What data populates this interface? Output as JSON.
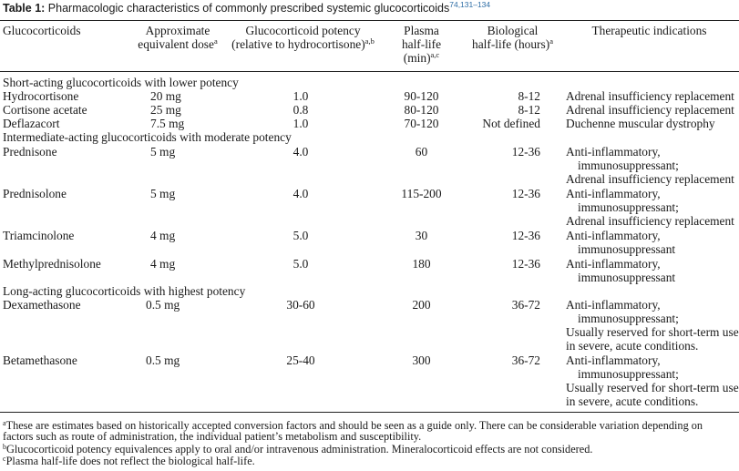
{
  "caption": {
    "label": "Table 1:",
    "text": "Pharmacologic characteristics of commonly prescribed systemic glucocorticoids",
    "refs": "74,131–134"
  },
  "headers": {
    "col1": "Glucocorticoids",
    "col2_line1": "Approximate",
    "col2_line2": "equivalent dose",
    "col2_sup": "a",
    "col3_line1": "Glucocorticoid potency",
    "col3_line2": "(relative to hydrocortisone)",
    "col3_sup": "a,b",
    "col4_line1": "Plasma",
    "col4_line2": "half-life",
    "col4_line3": "(min)",
    "col4_sup": "a,c",
    "col5_line1": "Biological",
    "col5_line2": "half-life (hours)",
    "col5_sup": "a",
    "col6": "Therapeutic indications"
  },
  "sections": [
    {
      "title": "Short-acting glucocorticoids with lower potency",
      "rows": [
        {
          "name": "Hydrocortisone",
          "dose": "20 mg",
          "potency": "1.0",
          "plasma": "90-120",
          "bio": "8-12",
          "ind": [
            "Adrenal insufficiency replacement"
          ]
        },
        {
          "name": "Cortisone acetate",
          "dose": "25 mg",
          "potency": "0.8",
          "plasma": "80-120",
          "bio": "8-12",
          "ind": [
            "Adrenal insufficiency replacement"
          ]
        },
        {
          "name": "Deflazacort",
          "dose": "7.5 mg",
          "potency": "1.0",
          "plasma": "70-120",
          "bio": "Not defined",
          "ind": [
            "Duchenne muscular dystrophy"
          ]
        }
      ]
    },
    {
      "title": "Intermediate-acting glucocorticoids with moderate potency",
      "rows": [
        {
          "name": "Prednisone",
          "dose": "5 mg",
          "potency": "4.0",
          "plasma": "60",
          "bio": "12-36",
          "ind": [
            "Anti-inflammatory,",
            "immunosuppressant;",
            "Adrenal insufficiency replacement"
          ]
        },
        {
          "name": "Prednisolone",
          "dose": "5 mg",
          "potency": "4.0",
          "plasma": "115-200",
          "bio": "12-36",
          "ind": [
            "Anti-inflammatory,",
            "immunosuppressant;",
            "Adrenal insufficiency replacement"
          ]
        },
        {
          "name": "Triamcinolone",
          "dose": "4 mg",
          "potency": "5.0",
          "plasma": "30",
          "bio": "12-36",
          "ind": [
            "Anti-inflammatory,",
            "immunosuppressant"
          ]
        },
        {
          "name": "Methylprednisolone",
          "dose": "4 mg",
          "potency": "5.0",
          "plasma": "180",
          "bio": "12-36",
          "ind": [
            "Anti-inflammatory,",
            "immunosuppressant"
          ]
        }
      ]
    },
    {
      "title": "Long-acting glucocorticoids with highest potency",
      "rows": [
        {
          "name": "Dexamethasone",
          "dose": "0.5 mg",
          "potency": "30-60",
          "plasma": "200",
          "bio": "36-72",
          "ind": [
            "Anti-inflammatory,",
            "immunosuppressant;",
            "Usually reserved for short-term use",
            "in severe, acute conditions."
          ]
        },
        {
          "name": "Betamethasone",
          "dose": "0.5 mg",
          "potency": "25-40",
          "plasma": "300",
          "bio": "36-72",
          "ind": [
            "Anti-inflammatory,",
            "immunosuppressant;",
            "Usually reserved for short-term use",
            "in severe, acute conditions."
          ]
        }
      ]
    }
  ],
  "footnotes": [
    {
      "mark": "a",
      "lines": [
        "These are estimates based on historically accepted conversion factors and should be seen as a guide only. There can be considerable variation depending on",
        "factors such as route of administration, the individual patient’s metabolism and susceptibility."
      ]
    },
    {
      "mark": "b",
      "lines": [
        "Glucocorticoid potency equivalences apply to oral and/or intravenous administration. Mineralocorticoid effects are not considered."
      ]
    },
    {
      "mark": "c",
      "lines": [
        "Plasma half-life does not reflect the biological half-life."
      ]
    }
  ],
  "colors": {
    "caption_refs": "#2f6ea6",
    "rule": "#222222",
    "text": "#1a1a1a"
  }
}
